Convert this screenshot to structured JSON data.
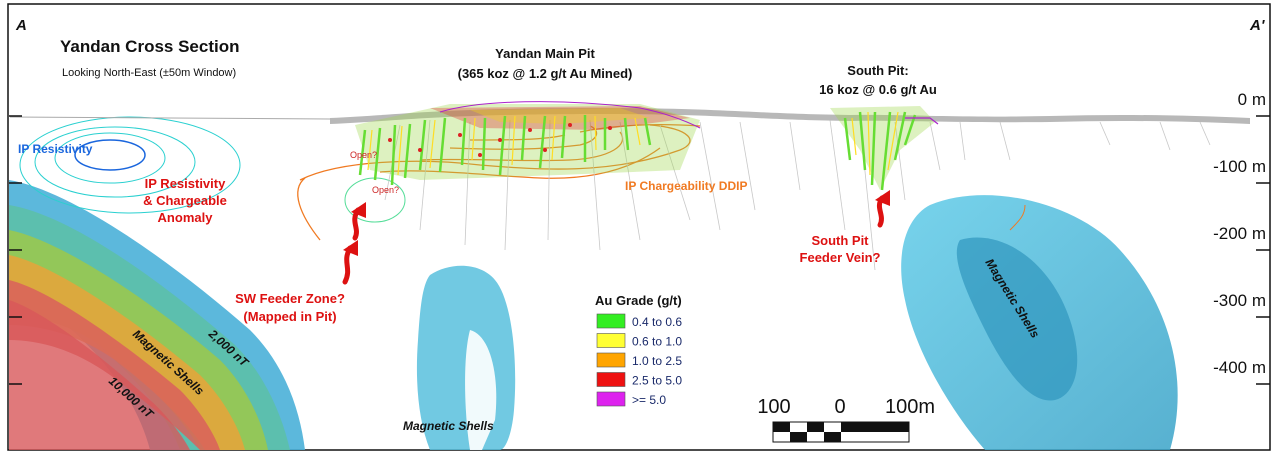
{
  "corner_left": "A",
  "corner_right": "A'",
  "title": "Yandan Cross Section",
  "subtitle": "Looking North-East  (±50m Window)",
  "main_pit": {
    "line1": "Yandan Main Pit",
    "line2": "(365 koz @ 1.2 g/t Au Mined)"
  },
  "south_pit": {
    "line1": "South Pit:",
    "line2": "16 koz @ 0.6 g/t Au"
  },
  "depth_labels": [
    "0 m",
    "-100 m",
    "-200 m",
    "-300 m",
    "-400 m"
  ],
  "ip_resistivity": "IP Resistivity",
  "ip_anomaly": [
    "IP Resistivity",
    "& Chargeable",
    "Anomaly"
  ],
  "open_labels": [
    "Open?",
    "Open?"
  ],
  "ip_chargeability": "IP Chargeability DDIP",
  "sw_feeder": [
    "SW Feeder Zone?",
    "(Mapped in Pit)"
  ],
  "south_feeder": [
    "South Pit",
    "Feeder Vein?"
  ],
  "magnetic_shells_labels": [
    "Magnetic Shells",
    "Magnetic Shells",
    "Magnetic Shells"
  ],
  "nt_labels": [
    "2,000 nT",
    "10,000 nT"
  ],
  "legend": {
    "title": "Au Grade (g/t)",
    "items": [
      {
        "label": "0.4 to 0.6",
        "color": "#33ee22"
      },
      {
        "label": "0.6 to 1.0",
        "color": "#ffff33"
      },
      {
        "label": "1.0 to 2.5",
        "color": "#ffa500"
      },
      {
        "label": "2.5 to 5.0",
        "color": "#ee1111"
      },
      {
        "label": ">= 5.0",
        "color": "#dd22ee"
      }
    ]
  },
  "scale_bar": {
    "labels": [
      "100",
      "0",
      "100m"
    ]
  },
  "colors": {
    "label_red": "#dd1111",
    "resistivity_blue": "#1a66dd",
    "chargeability_orange": "#f07a22",
    "shell_blue": "#45b8dd"
  }
}
